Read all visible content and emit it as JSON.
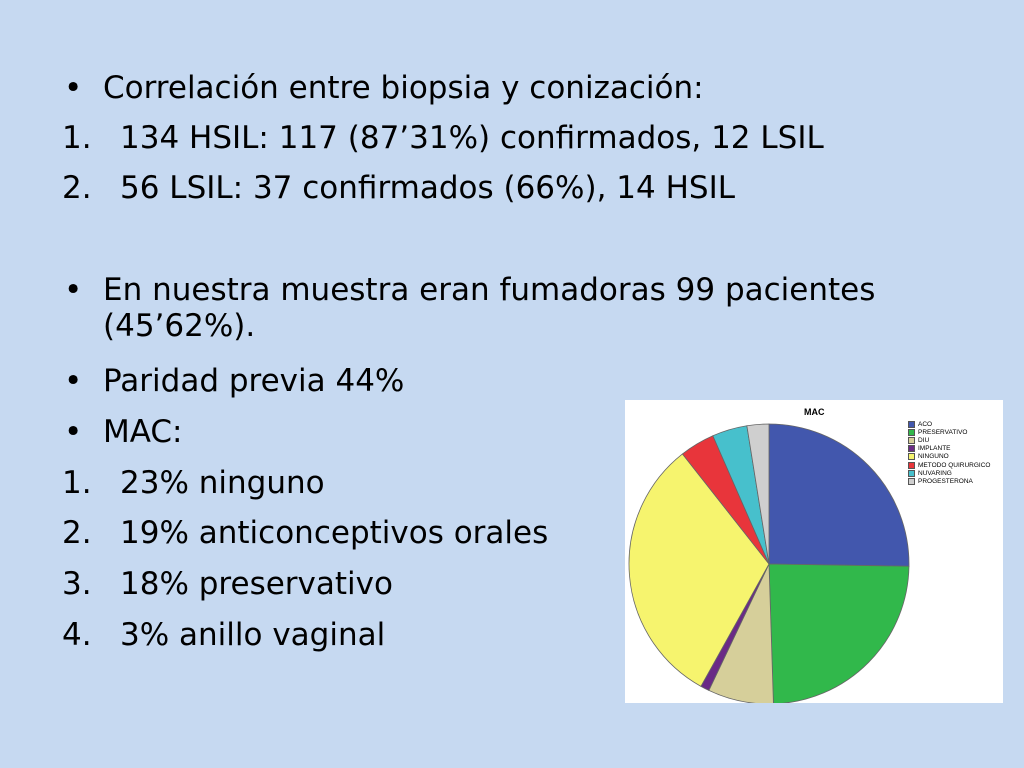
{
  "slide": {
    "lines": [
      {
        "marker": "•",
        "text": "Correlación entre biopsia y conización:"
      },
      {
        "marker": "1.",
        "text": "134 HSIL: 117 (87’31%) confirmados, 12 LSIL"
      },
      {
        "marker": "2.",
        "text": "56 LSIL: 37 confirmados (66%), 14 HSIL"
      },
      {
        "marker": "•",
        "text": "En nuestra muestra eran fumadoras 99 pacientes"
      },
      {
        "marker": "",
        "text": "(45’62%)."
      },
      {
        "marker": "•",
        "text": "Paridad previa 44%"
      },
      {
        "marker": "•",
        "text": "MAC:"
      },
      {
        "marker": "1.",
        "text": "23% ninguno"
      },
      {
        "marker": "2.",
        "text": "19% anticonceptivos orales"
      },
      {
        "marker": "3.",
        "text": "18% preservativo"
      },
      {
        "marker": "4.",
        "text": "3% anillo vaginal"
      }
    ]
  },
  "chart_data": {
    "type": "pie",
    "title": "MAC",
    "legend_position": "right",
    "series": [
      {
        "name": "ACO",
        "value": 25,
        "color": "#4257ad"
      },
      {
        "name": "PRESERVATIVO",
        "value": 24,
        "color": "#31b84b"
      },
      {
        "name": "DIU",
        "value": 7.5,
        "color": "#d6cf9a"
      },
      {
        "name": "IMPLANTE",
        "value": 1,
        "color": "#6a2a86"
      },
      {
        "name": "NINGUNO",
        "value": 31,
        "color": "#f6f46e"
      },
      {
        "name": "METODO QUIRURGICO",
        "value": 4,
        "color": "#e8353b"
      },
      {
        "name": "NUVARING",
        "value": 4,
        "color": "#47c0cc"
      },
      {
        "name": "PROGESTERONA",
        "value": 2.5,
        "color": "#cfcfcf"
      }
    ]
  }
}
